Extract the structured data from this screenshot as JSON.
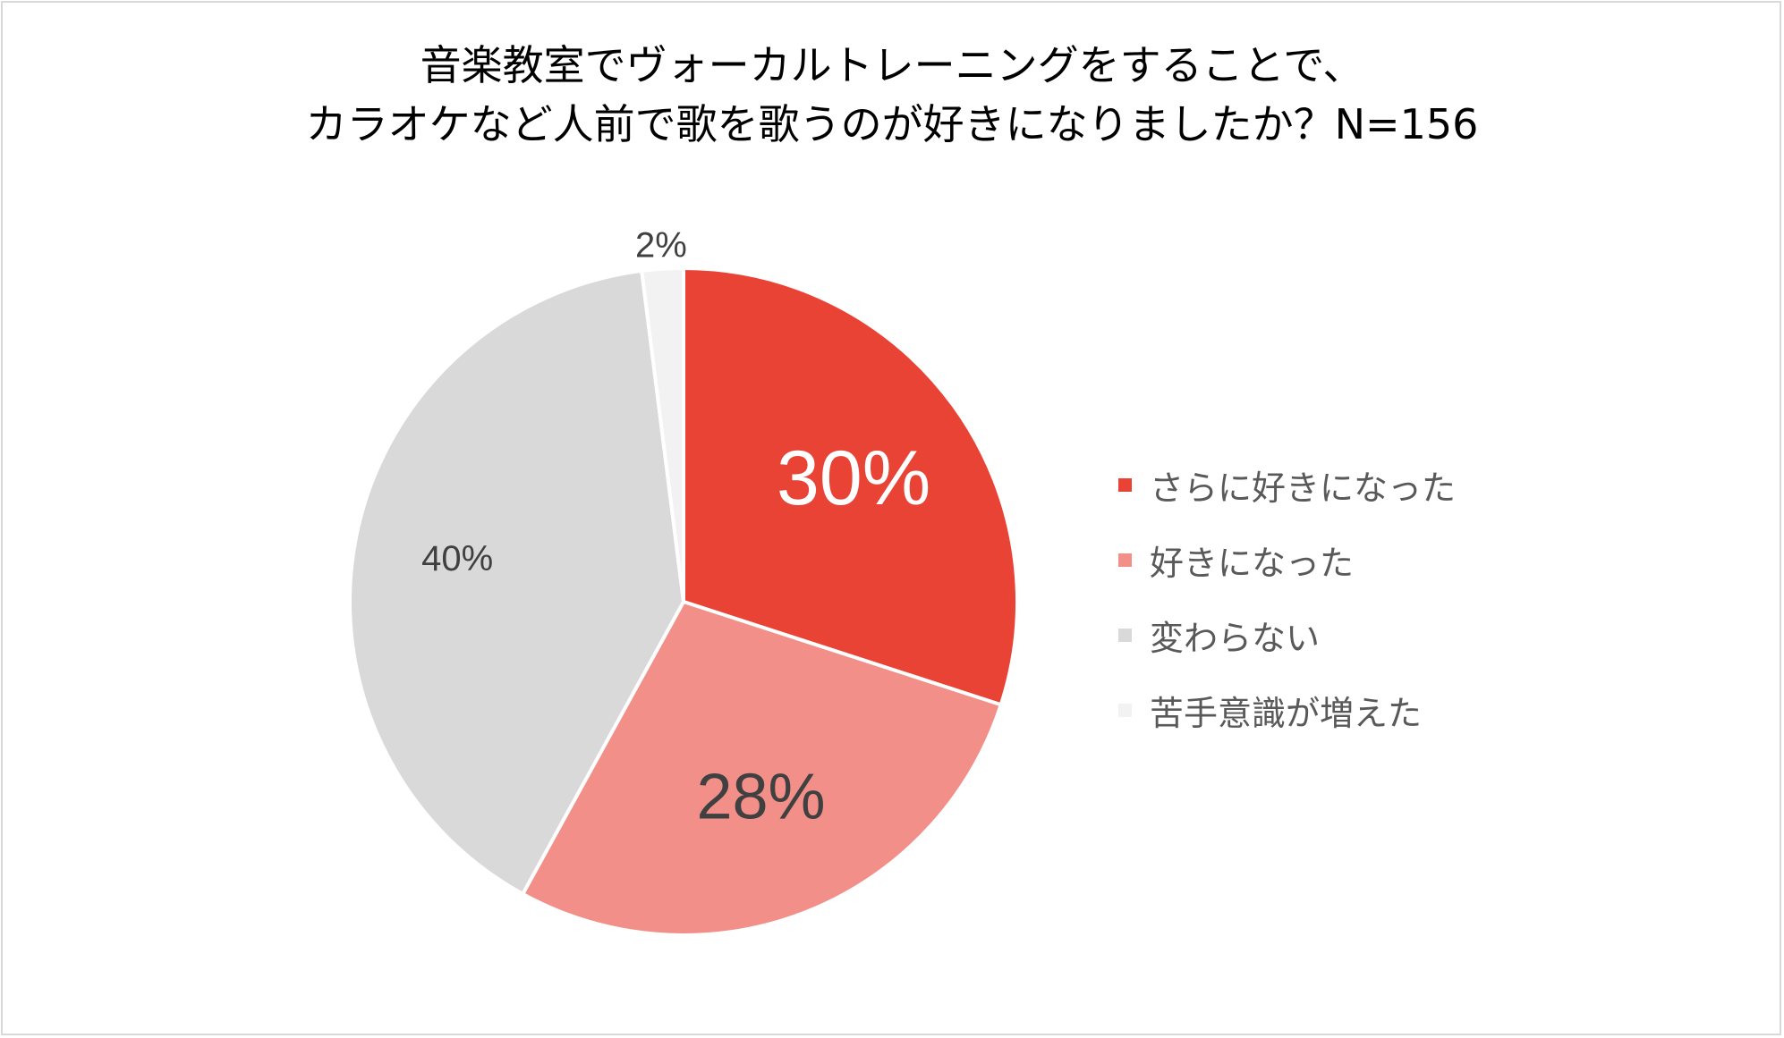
{
  "chart_data": {
    "type": "pie",
    "title_lines": [
      "音楽教室でヴォーカルトレーニングをすることで、",
      "カラオケなど人前で歌を歌うのが好きになりましたか？N=156"
    ],
    "categories": [
      "さらに好きになった",
      "好きになった",
      "変わらない",
      "苦手意識が増えた"
    ],
    "values": [
      30,
      28,
      40,
      2
    ],
    "labels": [
      "30%",
      "28%",
      "40%",
      "2%"
    ],
    "colors": [
      "#e94336",
      "#f28f88",
      "#d9d9d9",
      "#f2f2f2"
    ],
    "label_colors": [
      "#ffffff",
      "#404040",
      "#404040",
      "#404040"
    ],
    "legend_position": "right"
  }
}
